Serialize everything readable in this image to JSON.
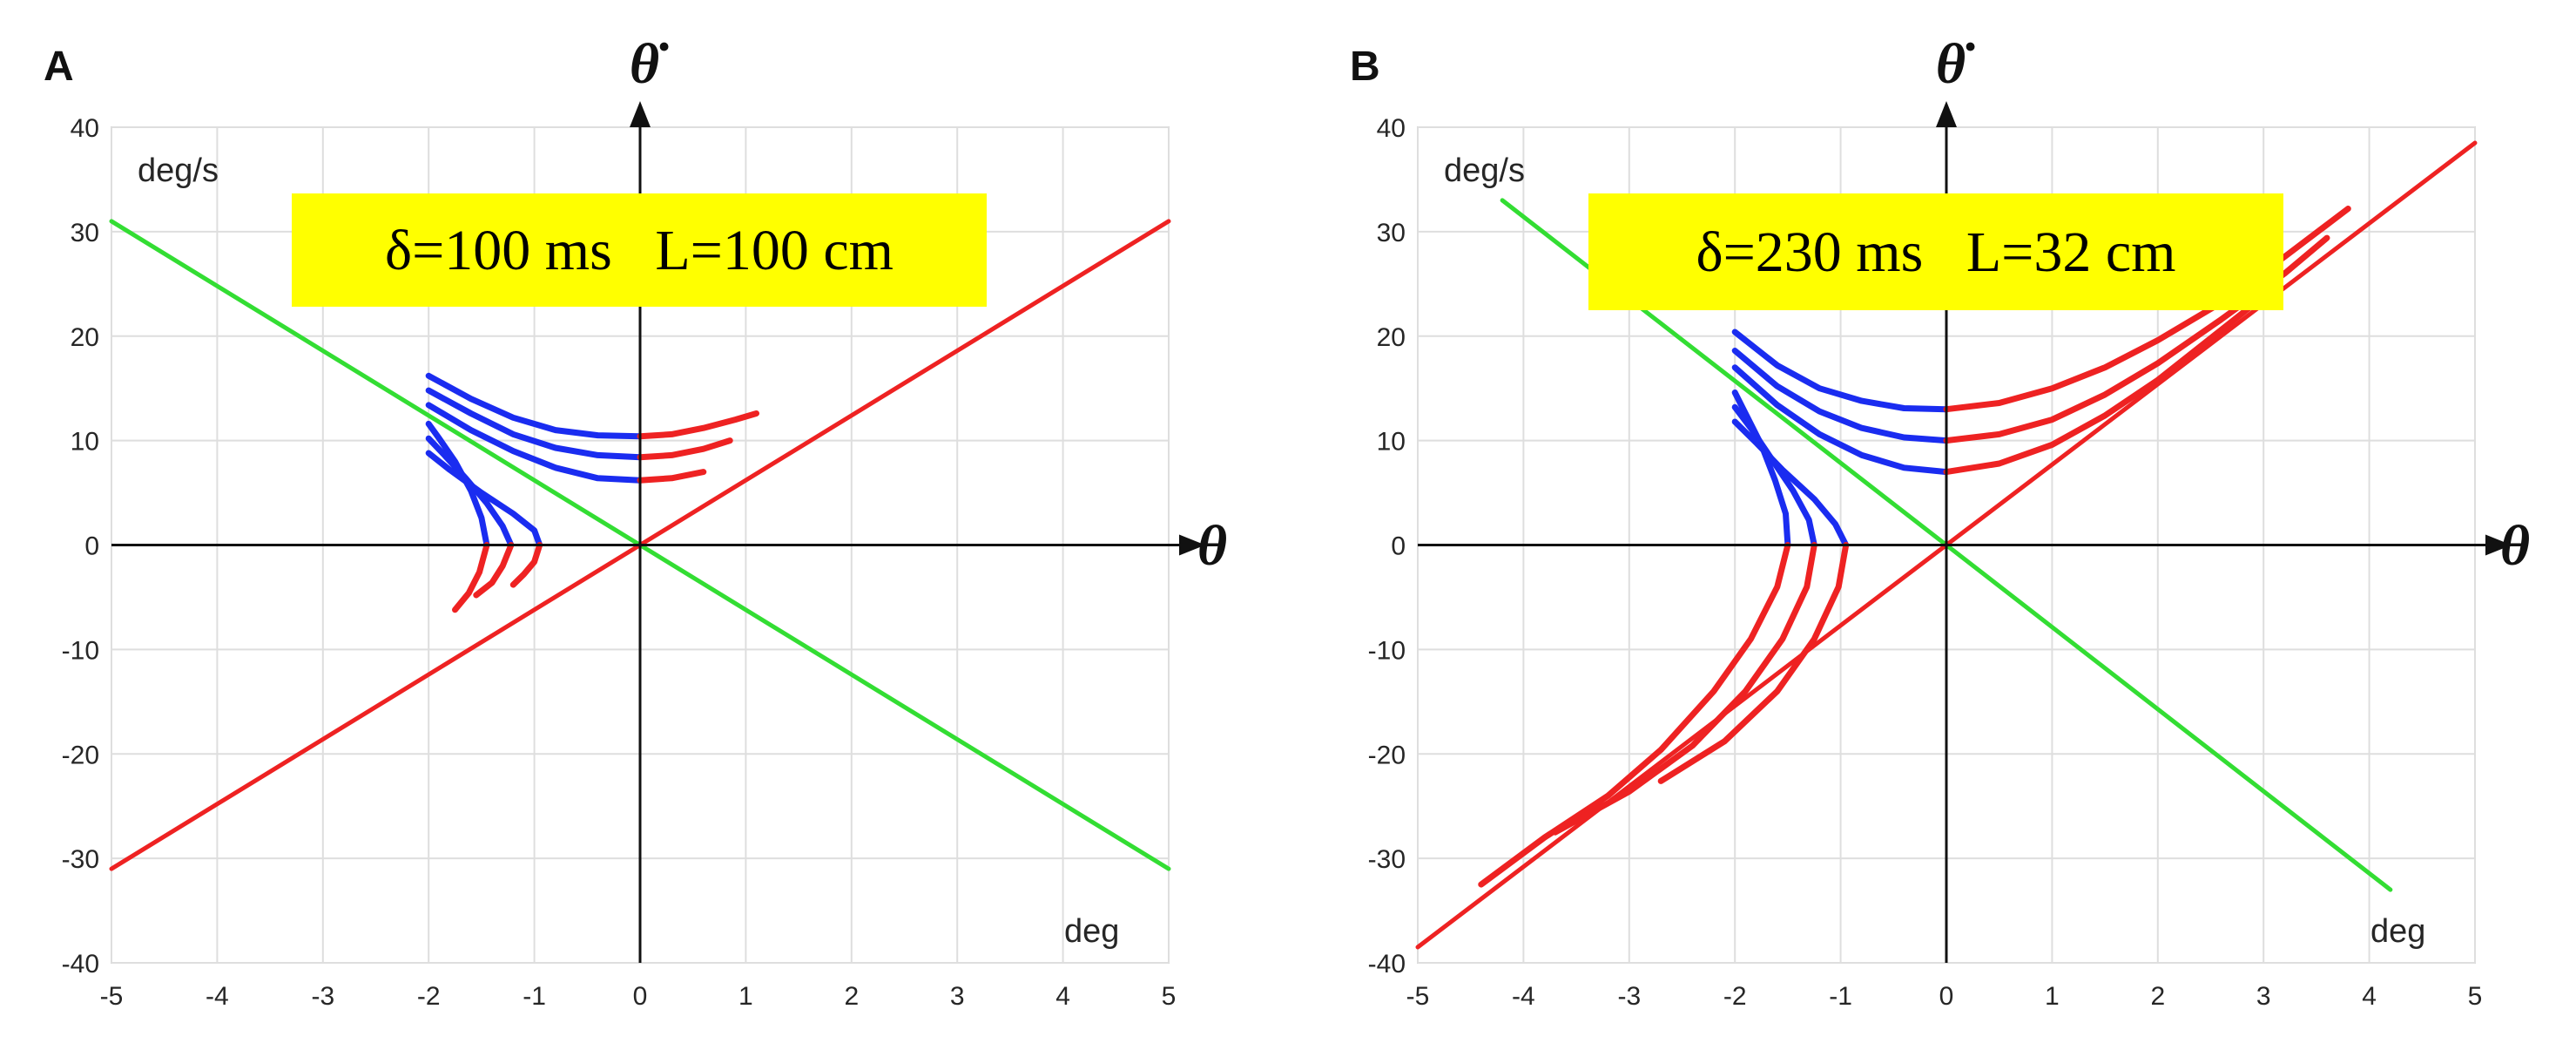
{
  "chart_data": [
    {
      "type": "line",
      "panel_label": "A",
      "xlim": [
        -5,
        5
      ],
      "ylim": [
        -40,
        40
      ],
      "x_ticks": [
        "-5",
        "-4",
        "-3",
        "-2",
        "-1",
        "0",
        "1",
        "2",
        "3",
        "4",
        "5"
      ],
      "y_ticks": [
        "40",
        "30",
        "20",
        "10",
        "0",
        "-10",
        "-20",
        "-30",
        "-40"
      ],
      "y_unit": "deg/s",
      "x_unit": "deg",
      "y_axis_symbol": "θ̇",
      "x_axis_symbol": "θ",
      "annotation": "δ=100 ms   L=100 cm",
      "grid": true,
      "colors": {
        "green": "#33dd33",
        "red": "#ee2222",
        "blue": "#1a2cf0",
        "box": "#ffff00",
        "axis": "#111111"
      },
      "lines": [
        {
          "color": "green",
          "points": [
            [
              -5,
              31
            ],
            [
              5,
              -31
            ]
          ]
        },
        {
          "color": "red",
          "points": [
            [
              -5,
              -31
            ],
            [
              5,
              31
            ]
          ]
        }
      ],
      "curves": [
        {
          "blue": [
            [
              -2.0,
              16.2
            ],
            [
              -1.6,
              14.0
            ],
            [
              -1.2,
              12.2
            ],
            [
              -0.8,
              11.0
            ],
            [
              -0.4,
              10.5
            ],
            [
              0,
              10.4
            ]
          ],
          "red": [
            [
              0,
              10.4
            ],
            [
              0.3,
              10.6
            ],
            [
              0.6,
              11.2
            ],
            [
              0.9,
              12.0
            ],
            [
              1.1,
              12.6
            ]
          ]
        },
        {
          "blue": [
            [
              -2.0,
              14.8
            ],
            [
              -1.6,
              12.6
            ],
            [
              -1.2,
              10.6
            ],
            [
              -0.8,
              9.3
            ],
            [
              -0.4,
              8.6
            ],
            [
              0,
              8.4
            ]
          ],
          "red": [
            [
              0,
              8.4
            ],
            [
              0.3,
              8.6
            ],
            [
              0.6,
              9.2
            ],
            [
              0.85,
              10.0
            ]
          ]
        },
        {
          "blue": [
            [
              -2.0,
              13.4
            ],
            [
              -1.6,
              11.0
            ],
            [
              -1.2,
              9.0
            ],
            [
              -0.8,
              7.4
            ],
            [
              -0.4,
              6.4
            ],
            [
              0,
              6.2
            ]
          ],
          "red": [
            [
              0,
              6.2
            ],
            [
              0.3,
              6.4
            ],
            [
              0.6,
              7.0
            ]
          ]
        },
        {
          "blue": [
            [
              -2.0,
              11.6
            ],
            [
              -1.9,
              10.2
            ],
            [
              -1.75,
              8.0
            ],
            [
              -1.6,
              5.2
            ],
            [
              -1.5,
              2.6
            ],
            [
              -1.45,
              0
            ]
          ],
          "red": [
            [
              -1.45,
              0
            ],
            [
              -1.52,
              -2.6
            ],
            [
              -1.62,
              -4.6
            ],
            [
              -1.75,
              -6.2
            ]
          ]
        },
        {
          "blue": [
            [
              -2.0,
              10.2
            ],
            [
              -1.85,
              8.6
            ],
            [
              -1.65,
              6.4
            ],
            [
              -1.45,
              4.0
            ],
            [
              -1.3,
              1.8
            ],
            [
              -1.22,
              0
            ]
          ],
          "red": [
            [
              -1.22,
              0
            ],
            [
              -1.3,
              -2.0
            ],
            [
              -1.4,
              -3.6
            ],
            [
              -1.55,
              -4.8
            ]
          ]
        },
        {
          "blue": [
            [
              -2.0,
              8.8
            ],
            [
              -1.8,
              7.2
            ],
            [
              -1.5,
              5.0
            ],
            [
              -1.2,
              3.0
            ],
            [
              -1.0,
              1.4
            ],
            [
              -0.95,
              0
            ]
          ],
          "red": [
            [
              -0.95,
              0
            ],
            [
              -1.0,
              -1.6
            ],
            [
              -1.1,
              -2.8
            ],
            [
              -1.2,
              -3.8
            ]
          ]
        }
      ]
    },
    {
      "type": "line",
      "panel_label": "B",
      "xlim": [
        -5,
        5
      ],
      "ylim": [
        -40,
        40
      ],
      "x_ticks": [
        "-5",
        "-4",
        "-3",
        "-2",
        "-1",
        "0",
        "1",
        "2",
        "3",
        "4",
        "5"
      ],
      "y_ticks": [
        "40",
        "30",
        "20",
        "10",
        "0",
        "-10",
        "-20",
        "-30",
        "-40"
      ],
      "y_unit": "deg/s",
      "x_unit": "deg",
      "y_axis_symbol": "θ̇",
      "x_axis_symbol": "θ",
      "annotation": "δ=230 ms   L=32 cm",
      "grid": true,
      "colors": {
        "green": "#33dd33",
        "red": "#ee2222",
        "blue": "#1a2cf0",
        "box": "#ffff00",
        "axis": "#111111"
      },
      "lines": [
        {
          "color": "green",
          "points": [
            [
              -4.2,
              33
            ],
            [
              4.2,
              -33
            ]
          ]
        },
        {
          "color": "red",
          "points": [
            [
              -5,
              -38.5
            ],
            [
              5,
              38.5
            ]
          ]
        }
      ],
      "curves": [
        {
          "blue": [
            [
              -2.0,
              20.4
            ],
            [
              -1.6,
              17.2
            ],
            [
              -1.2,
              15.0
            ],
            [
              -0.8,
              13.8
            ],
            [
              -0.4,
              13.1
            ],
            [
              0,
              13.0
            ]
          ],
          "red": [
            [
              0,
              13.0
            ],
            [
              0.5,
              13.6
            ],
            [
              1.0,
              15.0
            ],
            [
              1.5,
              17.0
            ],
            [
              2.0,
              19.6
            ],
            [
              2.6,
              23.2
            ],
            [
              3.2,
              27.6
            ],
            [
              3.8,
              32.2
            ]
          ]
        },
        {
          "blue": [
            [
              -2.0,
              18.6
            ],
            [
              -1.6,
              15.2
            ],
            [
              -1.2,
              12.8
            ],
            [
              -0.8,
              11.2
            ],
            [
              -0.4,
              10.3
            ],
            [
              0,
              10.0
            ]
          ],
          "red": [
            [
              0,
              10.0
            ],
            [
              0.5,
              10.6
            ],
            [
              1.0,
              12.0
            ],
            [
              1.5,
              14.4
            ],
            [
              2.0,
              17.4
            ],
            [
              2.6,
              21.6
            ],
            [
              3.2,
              26.0
            ],
            [
              3.6,
              29.4
            ]
          ]
        },
        {
          "blue": [
            [
              -2.0,
              17.0
            ],
            [
              -1.6,
              13.4
            ],
            [
              -1.2,
              10.6
            ],
            [
              -0.8,
              8.6
            ],
            [
              -0.4,
              7.4
            ],
            [
              0,
              7.0
            ]
          ],
          "red": [
            [
              0,
              7.0
            ],
            [
              0.5,
              7.8
            ],
            [
              1.0,
              9.6
            ],
            [
              1.5,
              12.4
            ],
            [
              2.0,
              15.8
            ],
            [
              2.6,
              20.6
            ],
            [
              3.0,
              23.8
            ]
          ]
        },
        {
          "blue": [
            [
              -2.0,
              14.6
            ],
            [
              -1.9,
              12.6
            ],
            [
              -1.75,
              9.6
            ],
            [
              -1.62,
              6.2
            ],
            [
              -1.52,
              3.0
            ],
            [
              -1.5,
              0
            ]
          ],
          "red": [
            [
              -1.5,
              0
            ],
            [
              -1.6,
              -4.0
            ],
            [
              -1.85,
              -9.0
            ],
            [
              -2.2,
              -14.0
            ],
            [
              -2.7,
              -19.6
            ],
            [
              -3.2,
              -24.0
            ],
            [
              -3.8,
              -28.0
            ],
            [
              -4.4,
              -32.5
            ]
          ]
        },
        {
          "blue": [
            [
              -2.0,
              13.2
            ],
            [
              -1.85,
              11.2
            ],
            [
              -1.65,
              8.2
            ],
            [
              -1.45,
              5.2
            ],
            [
              -1.3,
              2.4
            ],
            [
              -1.25,
              0
            ]
          ],
          "red": [
            [
              -1.25,
              0
            ],
            [
              -1.32,
              -4.0
            ],
            [
              -1.55,
              -9.0
            ],
            [
              -1.9,
              -14.0
            ],
            [
              -2.4,
              -19.2
            ],
            [
              -3.0,
              -23.6
            ],
            [
              -3.7,
              -27.5
            ]
          ]
        },
        {
          "blue": [
            [
              -2.0,
              11.8
            ],
            [
              -1.8,
              9.8
            ],
            [
              -1.55,
              7.2
            ],
            [
              -1.25,
              4.4
            ],
            [
              -1.05,
              2.0
            ],
            [
              -0.95,
              0
            ]
          ],
          "red": [
            [
              -0.95,
              0
            ],
            [
              -1.02,
              -4.0
            ],
            [
              -1.25,
              -9.0
            ],
            [
              -1.6,
              -14.0
            ],
            [
              -2.1,
              -18.8
            ],
            [
              -2.7,
              -22.6
            ]
          ]
        }
      ]
    }
  ]
}
